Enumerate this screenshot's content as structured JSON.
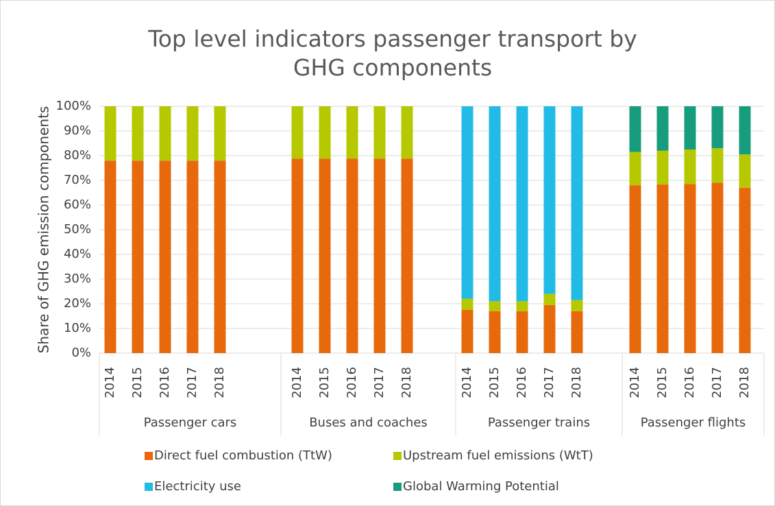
{
  "chart_data": {
    "type": "stacked_bar",
    "title": "Top level indicators passenger transport by GHG components",
    "ylabel": "Share of GHG emission components",
    "groups": [
      "Passenger cars",
      "Buses and coaches",
      "Passenger trains",
      "Passenger flights"
    ],
    "categories": [
      "2014",
      "2015",
      "2016",
      "2017",
      "2018",
      "2014",
      "2015",
      "2016",
      "2017",
      "2018",
      "2014",
      "2015",
      "2016",
      "2017",
      "2018",
      "2014",
      "2015",
      "2016",
      "2017",
      "2018"
    ],
    "series": [
      {
        "name": "Direct fuel combustion (TtW)",
        "color": "#e8690b",
        "values": [
          78,
          78,
          78,
          78,
          78,
          78.8,
          78.8,
          78.8,
          78.8,
          78.8,
          17.5,
          17,
          17,
          19.5,
          17,
          68,
          68.3,
          68.5,
          69,
          67
        ]
      },
      {
        "name": "Upstream fuel emissions (WtT)",
        "color": "#b5c800",
        "values": [
          22,
          22,
          22,
          22,
          22,
          21.2,
          21.2,
          21.2,
          21.2,
          21.2,
          4.5,
          4,
          4,
          4.5,
          4.5,
          13.5,
          13.7,
          14,
          14,
          13.5
        ]
      },
      {
        "name": "Electricity use",
        "color": "#22bbe6",
        "values": [
          0,
          0,
          0,
          0,
          0,
          0,
          0,
          0,
          0,
          0,
          78,
          79,
          79,
          76,
          78.5,
          0,
          0,
          0,
          0,
          0
        ]
      },
      {
        "name": "Global Warming Potential",
        "color": "#179c7d",
        "values": [
          0,
          0,
          0,
          0,
          0,
          0,
          0,
          0,
          0,
          0,
          0,
          0,
          0,
          0,
          0,
          18.5,
          18,
          17.5,
          17,
          19.5
        ]
      }
    ],
    "ylim": [
      0,
      100
    ],
    "yticks": [
      {
        "value": 0,
        "label": "0%"
      },
      {
        "value": 10,
        "label": "10%"
      },
      {
        "value": 20,
        "label": "20%"
      },
      {
        "value": 30,
        "label": "30%"
      },
      {
        "value": 40,
        "label": "40%"
      },
      {
        "value": 50,
        "label": "50%"
      },
      {
        "value": 60,
        "label": "60%"
      },
      {
        "value": 70,
        "label": "70%"
      },
      {
        "value": 80,
        "label": "80%"
      },
      {
        "value": 90,
        "label": "90%"
      },
      {
        "value": 100,
        "label": "100%"
      }
    ],
    "grid": true,
    "legend": "bottom"
  }
}
